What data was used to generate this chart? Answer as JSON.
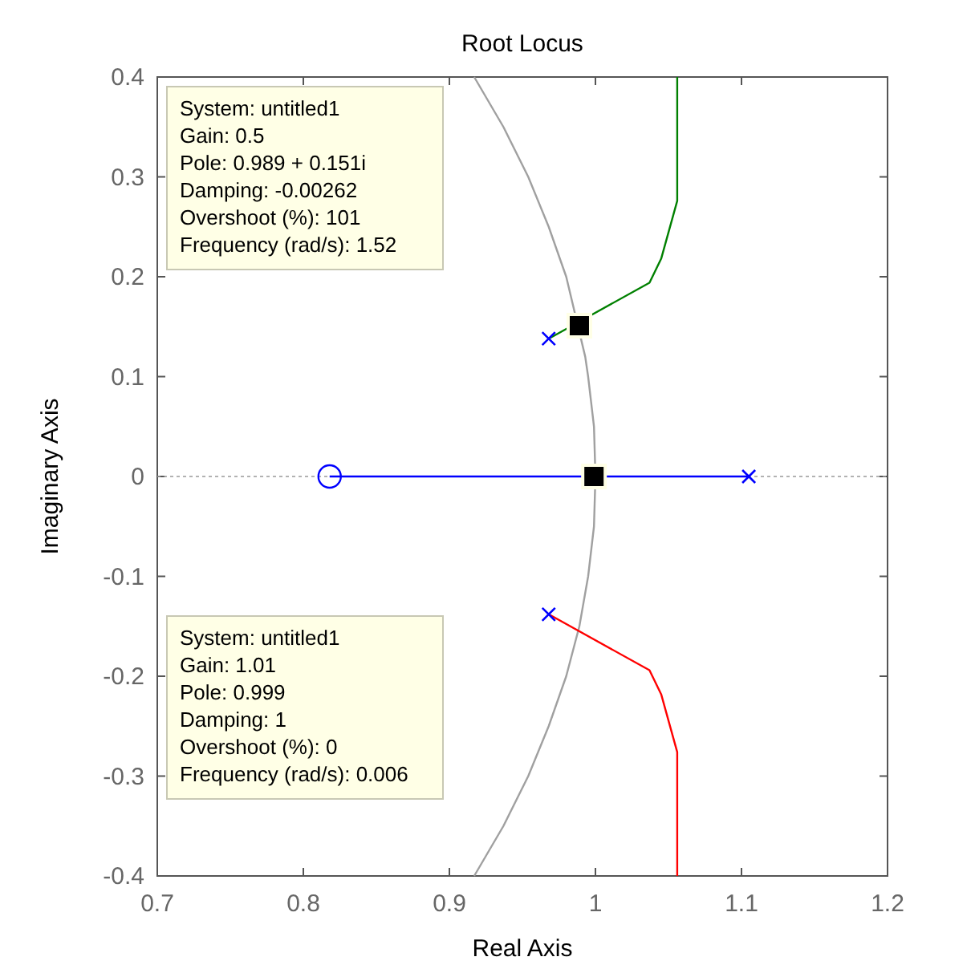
{
  "chart_data": {
    "type": "line",
    "title": "Root Locus",
    "xlabel": "Real Axis",
    "ylabel": "Imaginary Axis",
    "xlim": [
      0.7,
      1.2
    ],
    "xticks": [
      0.7,
      0.8,
      0.9,
      1,
      1.1,
      1.2
    ],
    "ylim": [
      -0.4,
      0.4
    ],
    "yticks": [
      -0.4,
      -0.3,
      -0.2,
      -0.1,
      0,
      0.1,
      0.2,
      0.3,
      0.4
    ],
    "grid": false,
    "ref_lines": [
      {
        "axis": "y",
        "value": 0,
        "color": "#999999",
        "line_style": "dotted"
      }
    ],
    "series": [
      {
        "type": "line",
        "color": "#a0a0a0",
        "marker": "none",
        "x": [
          0.917,
          0.937,
          0.954,
          0.968,
          0.98,
          0.993,
          0.995,
          0.999,
          1,
          0.999,
          0.995,
          0.989,
          0.98,
          0.968,
          0.954,
          0.937,
          0.917
        ],
        "values": [
          0.4,
          0.35,
          0.3,
          0.25,
          0.2,
          0.12,
          0.1,
          0.05,
          0,
          -0.05,
          -0.1,
          -0.15,
          -0.2,
          -0.25,
          -0.3,
          -0.35,
          -0.4
        ]
      },
      {
        "type": "line",
        "color": "#0000ff",
        "marker": "none",
        "x": [
          0.818,
          1.105
        ],
        "values": [
          0,
          0
        ]
      },
      {
        "type": "line",
        "color": "#008000",
        "marker": "none",
        "x": [
          0.968,
          1.037,
          1.045,
          1.056,
          1.056
        ],
        "values": [
          0.138,
          0.194,
          0.218,
          0.276,
          0.4
        ]
      },
      {
        "type": "line",
        "color": "#ff0000",
        "marker": "none",
        "x": [
          0.968,
          1.037,
          1.045,
          1.056,
          1.056
        ],
        "values": [
          -0.138,
          -0.194,
          -0.218,
          -0.276,
          -0.4
        ]
      },
      {
        "type": "scatter",
        "color": "#0000ff",
        "marker": "cross",
        "x": [
          0.968,
          0.968,
          1.105
        ],
        "values": [
          0.138,
          -0.138,
          0
        ]
      },
      {
        "type": "scatter",
        "color": "#0000ff",
        "marker": "circle",
        "x": [
          0.818
        ],
        "values": [
          0
        ]
      },
      {
        "type": "scatter",
        "color": "#000000",
        "marker": "square",
        "x": [
          0.989,
          0.999
        ],
        "values": [
          0.151,
          0
        ]
      }
    ],
    "annotations": [
      "System: untitled1\nGain: 0.5\nPole: 0.989 + 0.151i\nDamping: -0.00262\nOvershoot (%): 101\nFrequency (rad/s): 1.52",
      "System: untitled1\nGain: 1.01\nPole: 0.999\nDamping: 1\nOvershoot (%): 0\nFrequency (rad/s): 0.006"
    ]
  }
}
